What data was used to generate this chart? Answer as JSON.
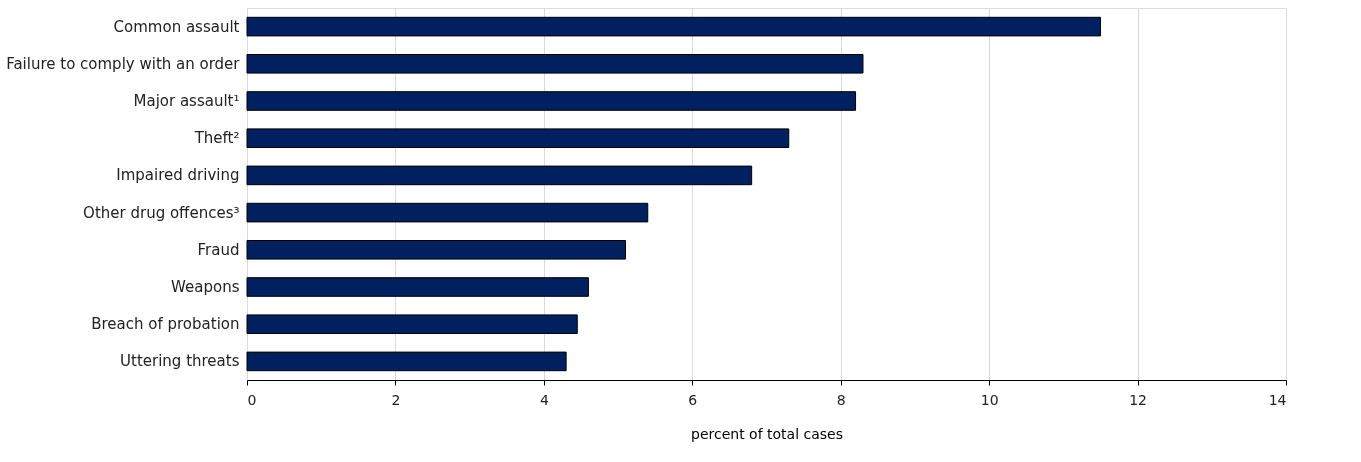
{
  "chart_data": {
    "type": "bar",
    "orientation": "horizontal",
    "categories": [
      "Common assault",
      "Failure to comply with an order",
      "Major assault¹",
      "Theft²",
      "Impaired driving",
      "Other drug offences³",
      "Fraud",
      "Weapons",
      "Breach of probation",
      "Uttering threats"
    ],
    "values": [
      11.5,
      8.3,
      8.2,
      7.3,
      6.8,
      5.4,
      5.1,
      4.6,
      4.45,
      4.3
    ],
    "color": "#002060",
    "xlim": [
      0,
      14
    ],
    "xticks": [
      0,
      2,
      4,
      6,
      8,
      10,
      12,
      14
    ],
    "xlabel": "percent of total cases",
    "grid": "x"
  }
}
